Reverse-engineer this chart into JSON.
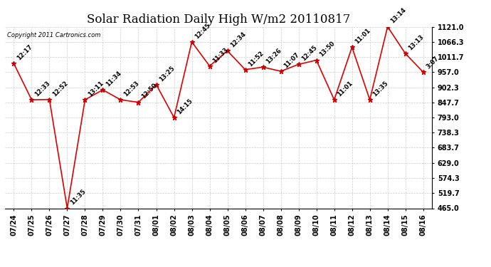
{
  "title": "Solar Radiation Daily High W/m2 20110817",
  "copyright": "Copyright 2011 Cartronics.com",
  "x_labels": [
    "07/24",
    "07/25",
    "07/26",
    "07/27",
    "07/28",
    "07/29",
    "07/30",
    "07/31",
    "08/01",
    "08/02",
    "08/03",
    "08/04",
    "08/05",
    "08/06",
    "08/07",
    "08/08",
    "08/09",
    "08/10",
    "08/11",
    "08/12",
    "08/13",
    "08/14",
    "08/15",
    "08/16"
  ],
  "y_values": [
    988.0,
    857.0,
    858.0,
    465.0,
    857.0,
    893.0,
    857.0,
    848.0,
    912.0,
    793.0,
    1066.0,
    979.0,
    1034.0,
    966.0,
    975.0,
    960.0,
    985.0,
    1000.0,
    857.0,
    1047.0,
    857.0,
    1121.0,
    1024.0,
    957.0
  ],
  "point_labels": [
    "12:17",
    "12:33",
    "12:52",
    "11:35",
    "13:11",
    "11:34",
    "12:53",
    "12:50",
    "13:25",
    "14:15",
    "12:45",
    "11:33",
    "12:34",
    "11:52",
    "13:26",
    "11:07",
    "12:45",
    "13:50",
    "11:01",
    "11:01",
    "13:35",
    "13:14",
    "13:13",
    "3:07"
  ],
  "ylim_min": 465.0,
  "ylim_max": 1121.0,
  "ytick_values": [
    465.0,
    519.7,
    574.3,
    629.0,
    683.7,
    738.3,
    793.0,
    847.7,
    902.3,
    957.0,
    1011.7,
    1066.3,
    1121.0
  ],
  "ytick_labels": [
    "465.0",
    "519.7",
    "574.3",
    "629.0",
    "683.7",
    "738.3",
    "793.0",
    "847.7",
    "902.3",
    "957.0",
    "1011.7",
    "1066.3",
    "1121.0"
  ],
  "line_color": "#dd0000",
  "marker_color": "#cc0000",
  "bg_color": "#ffffff",
  "grid_color": "#cccccc",
  "title_fontsize": 12,
  "annot_fontsize": 6,
  "tick_fontsize": 7
}
